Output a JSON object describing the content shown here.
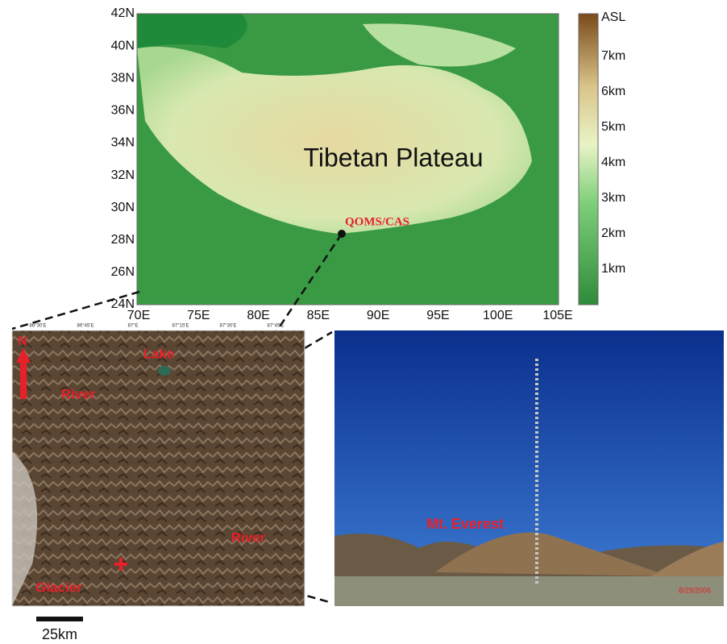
{
  "map": {
    "title": "Tibetan Plateau",
    "station": "QOMS/CAS",
    "lat_labels": [
      "42N",
      "40N",
      "38N",
      "36N",
      "34N",
      "32N",
      "30N",
      "28N",
      "26N",
      "24N"
    ],
    "lon_labels": [
      "70E",
      "75E",
      "80E",
      "85E",
      "90E",
      "95E",
      "100E",
      "105E"
    ]
  },
  "colorbar": {
    "title": "ASL",
    "labels": [
      "7km",
      "6km",
      "5km",
      "4km",
      "3km",
      "2km",
      "1km"
    ]
  },
  "satellite": {
    "north": "N",
    "labels": [
      "Lake",
      "River",
      "River",
      "Glacier"
    ],
    "top_ticks": [
      "86°30'E",
      "86°45'E",
      "87°E",
      "87°15'E",
      "87°30'E",
      "87°45'E"
    ],
    "scale": "25km"
  },
  "photo": {
    "label": "Mt. Everest",
    "date": "8/29/2006"
  }
}
